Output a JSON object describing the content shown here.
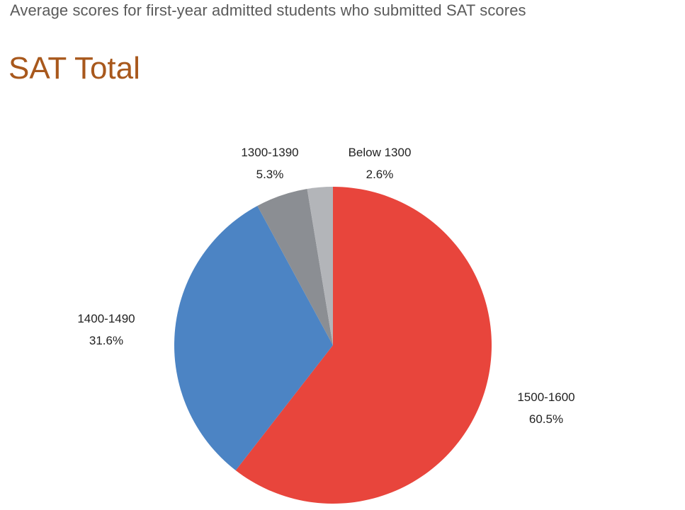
{
  "header": {
    "subtitle": "Average scores for first-year admitted students who submitted SAT scores",
    "title": "SAT Total"
  },
  "chart_data": {
    "type": "pie",
    "title": "SAT Total",
    "slices": [
      {
        "label": "1500-1600",
        "value": 60.5,
        "display": "60.5%",
        "color": "#e8453c"
      },
      {
        "label": "1400-1490",
        "value": 31.6,
        "display": "31.6%",
        "color": "#4c84c4"
      },
      {
        "label": "1300-1390",
        "value": 5.3,
        "display": "5.3%",
        "color": "#8b8e93"
      },
      {
        "label": "Below 1300",
        "value": 2.6,
        "display": "2.6%",
        "color": "#b3b5b9"
      }
    ],
    "start": "12 o'clock",
    "direction": "clockwise"
  }
}
